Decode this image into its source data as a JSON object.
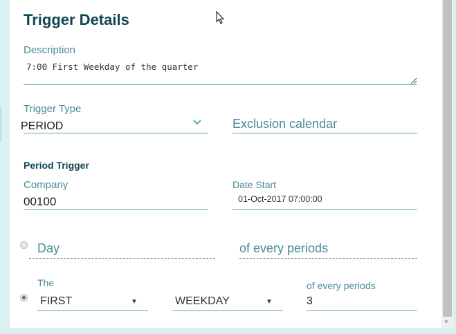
{
  "title": "Trigger Details",
  "description": {
    "label": "Description",
    "value": "7:00 First Weekday of the quarter"
  },
  "trigger_type": {
    "label": "Trigger Type",
    "value": "PERIOD"
  },
  "exclusion_calendar": {
    "placeholder": "Exclusion calendar"
  },
  "period_trigger": {
    "heading": "Period Trigger",
    "company": {
      "label": "Company",
      "value": "00100"
    },
    "date_start": {
      "label": "Date Start",
      "value": "01-Oct-2017 07:00:00"
    },
    "day_option": {
      "day_placeholder": "Day",
      "periods_placeholder": "of every periods",
      "selected": false
    },
    "the_option": {
      "label": "The",
      "ordinal": "FIRST",
      "day_type": "WEEKDAY",
      "periods_label": "of every periods",
      "periods_value": "3",
      "selected": true
    }
  }
}
